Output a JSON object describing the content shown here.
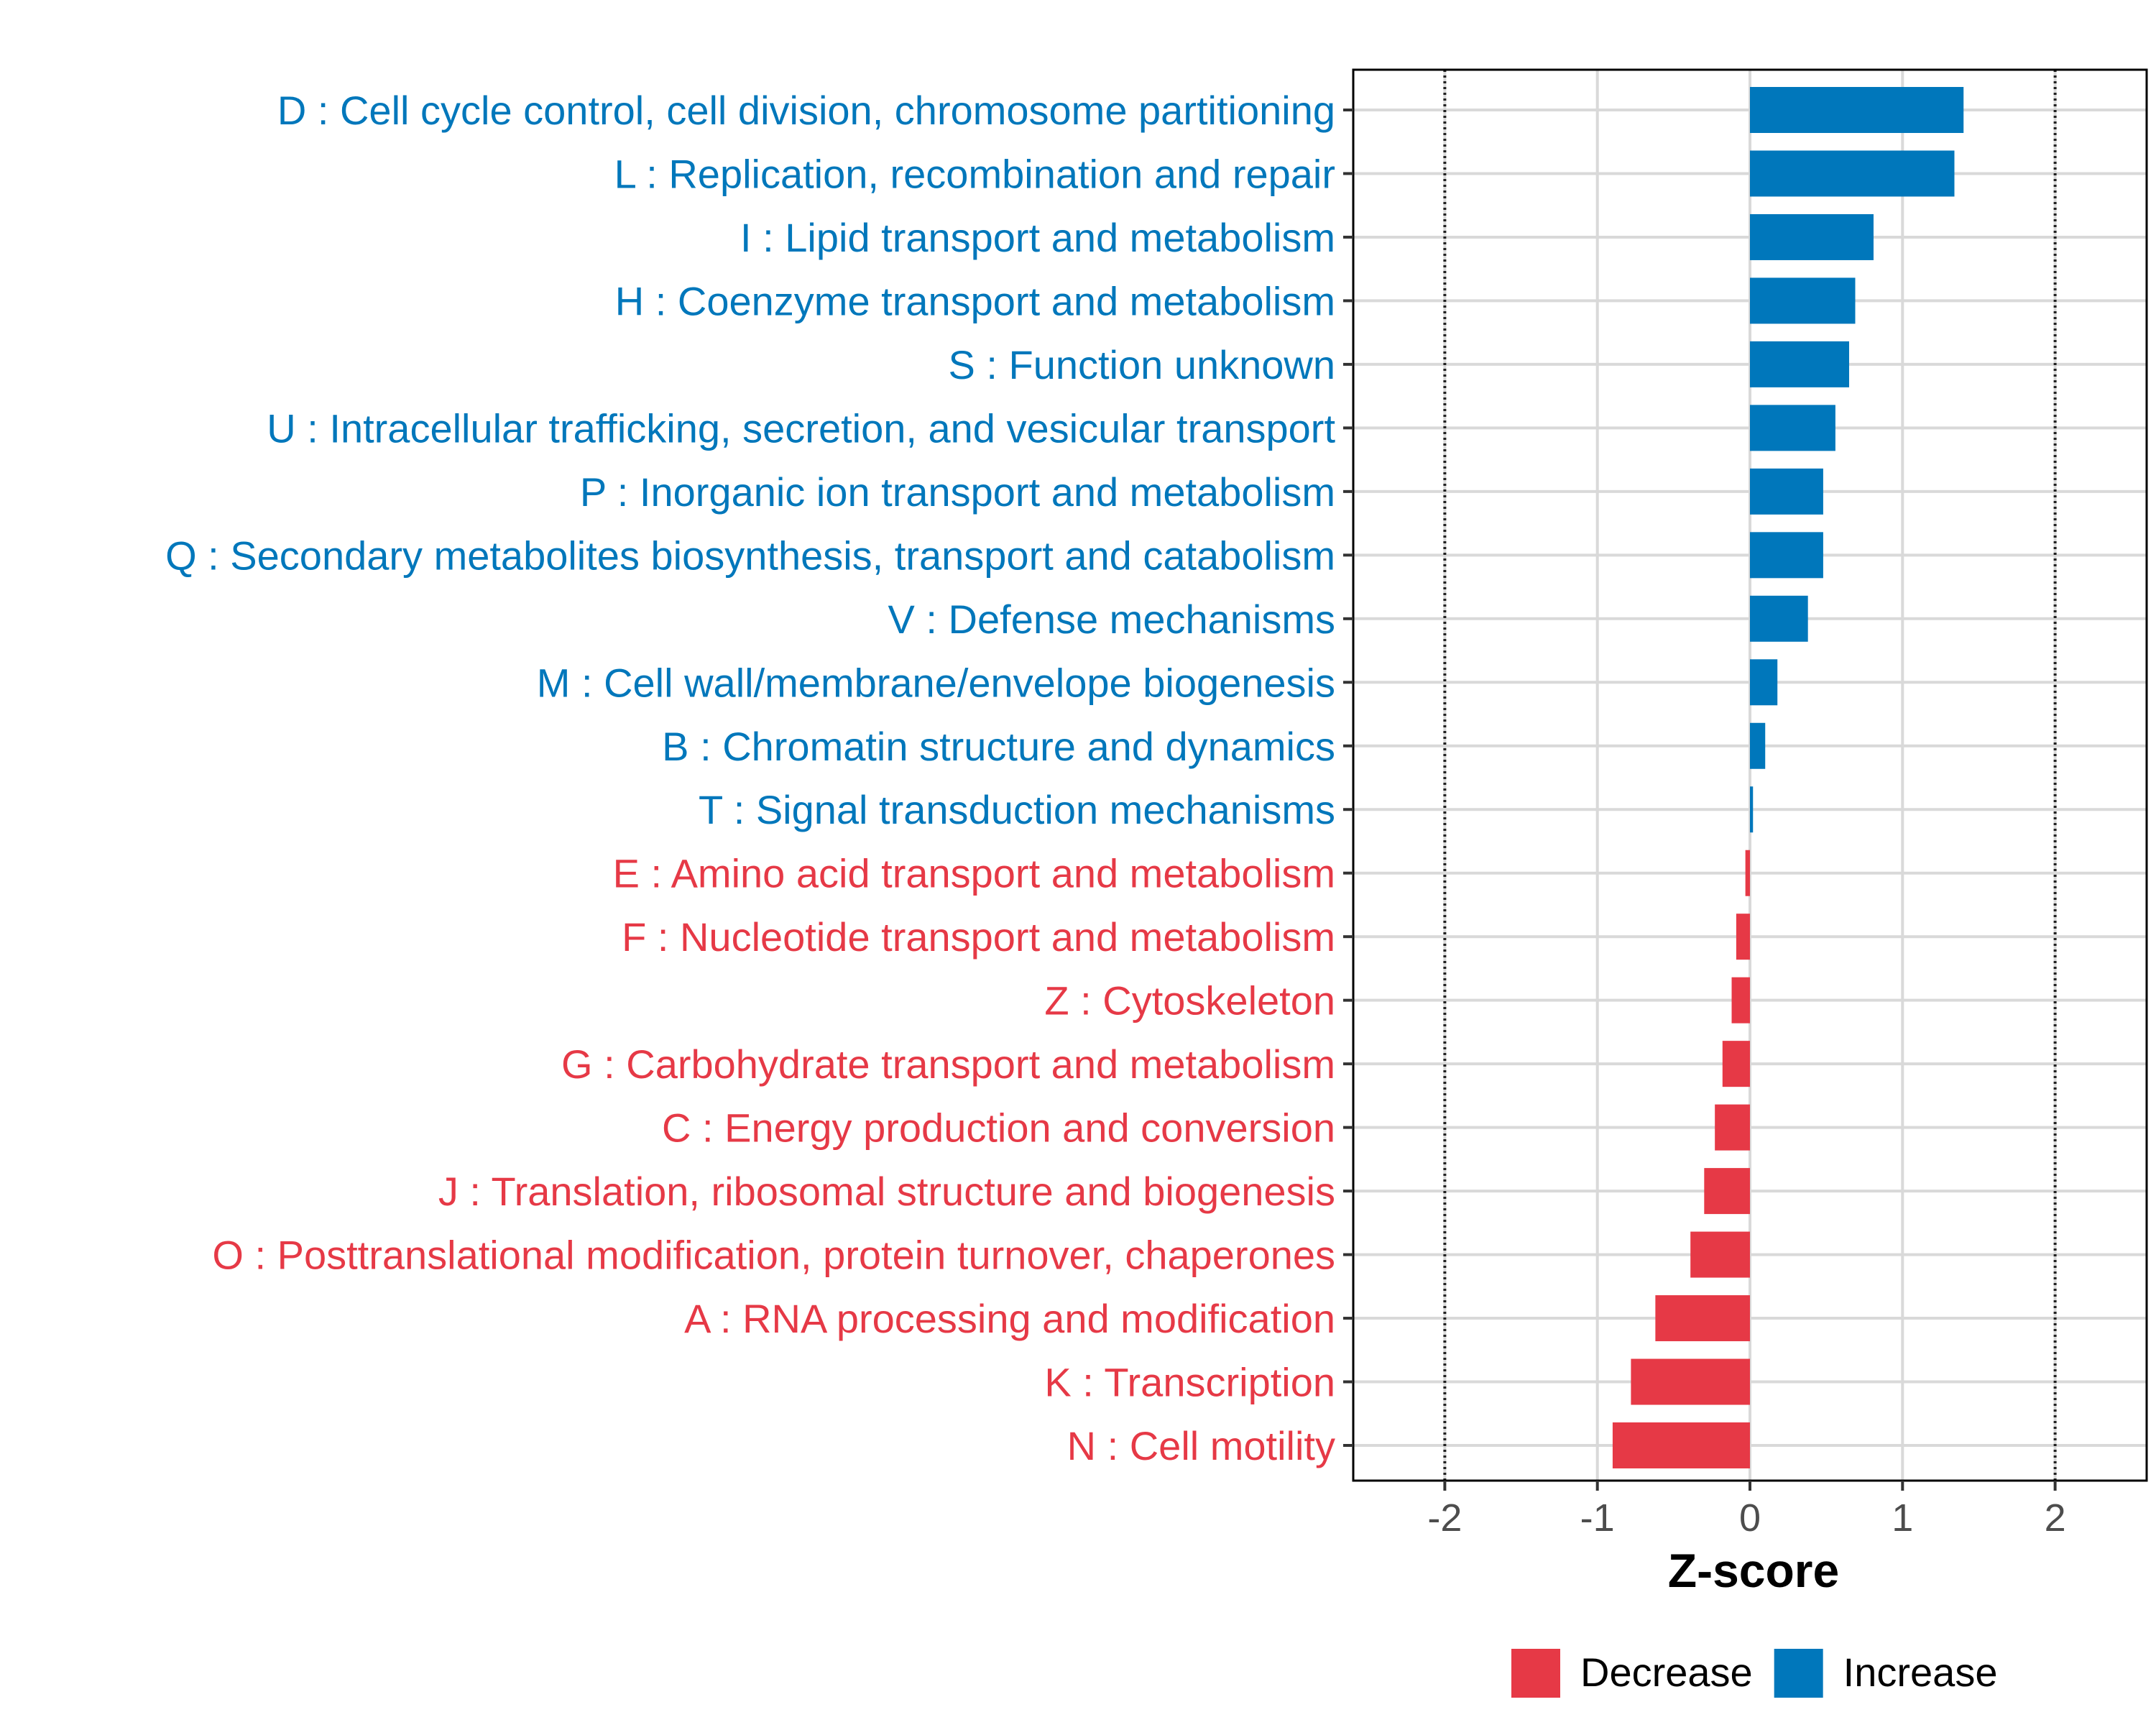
{
  "chart_data": {
    "type": "bar",
    "orientation": "horizontal",
    "xlabel": "Z-score",
    "xlim": [
      -2.6,
      2.6
    ],
    "xticks": [
      -2,
      -1,
      0,
      1,
      2
    ],
    "xtick_labels": [
      "-2",
      "-1",
      "0",
      "1",
      "2"
    ],
    "reference_lines": [
      -2,
      2
    ],
    "grid": true,
    "legend_placement": "bottom",
    "legend": [
      {
        "name": "Decrease",
        "color": "#E63946"
      },
      {
        "name": "Increase",
        "color": "#0077BB"
      }
    ],
    "colors": {
      "Decrease": "#E63946",
      "Increase": "#0077BB"
    },
    "categories": [
      "D : Cell cycle control, cell division, chromosome partitioning",
      "L : Replication, recombination and repair",
      "I : Lipid transport and metabolism",
      "H : Coenzyme transport and metabolism",
      "S : Function unknown",
      "U : Intracellular trafficking, secretion, and vesicular transport",
      "P : Inorganic ion transport and metabolism",
      "Q : Secondary metabolites biosynthesis, transport and catabolism",
      "V : Defense mechanisms",
      "M : Cell wall/membrane/envelope biogenesis",
      "B : Chromatin structure and dynamics",
      "T : Signal transduction mechanisms",
      "E : Amino acid transport and metabolism",
      "F : Nucleotide transport and metabolism",
      "Z : Cytoskeleton",
      "G : Carbohydrate transport and metabolism",
      "C : Energy production and conversion",
      "J : Translation, ribosomal structure and biogenesis",
      "O : Posttranslational modification, protein turnover, chaperones",
      "A : RNA processing and modification",
      "K : Transcription",
      "N : Cell motility"
    ],
    "values": [
      1.4,
      1.34,
      0.81,
      0.69,
      0.65,
      0.56,
      0.48,
      0.48,
      0.38,
      0.18,
      0.1,
      0.02,
      -0.03,
      -0.09,
      -0.12,
      -0.18,
      -0.23,
      -0.3,
      -0.39,
      -0.62,
      -0.78,
      -0.9
    ],
    "groups": [
      "Increase",
      "Increase",
      "Increase",
      "Increase",
      "Increase",
      "Increase",
      "Increase",
      "Increase",
      "Increase",
      "Increase",
      "Increase",
      "Increase",
      "Decrease",
      "Decrease",
      "Decrease",
      "Decrease",
      "Decrease",
      "Decrease",
      "Decrease",
      "Decrease",
      "Decrease",
      "Decrease"
    ]
  }
}
